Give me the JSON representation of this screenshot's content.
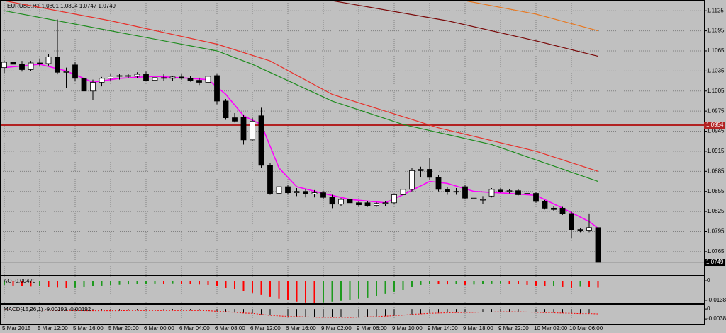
{
  "chart_data": [
    {
      "type": "candlestick",
      "title": "EURUSD,H1 1.0801 1.0804 1.0747 1.0749",
      "categories": [
        "5 Mar 2015",
        null,
        null,
        null,
        "5 Mar 12:00",
        null,
        null,
        null,
        "5 Mar 16:00",
        null,
        null,
        null,
        "5 Mar 20:00",
        null,
        null,
        null,
        "6 Mar 00:00",
        null,
        null,
        null,
        "6 Mar 04:00",
        null,
        null,
        null,
        "6 Mar 08:00",
        null,
        null,
        null,
        "6 Mar 12:00",
        null,
        null,
        null,
        "6 Mar 16:00",
        null,
        null,
        null,
        "9 Mar 02:00",
        null,
        null,
        null,
        "9 Mar 06:00",
        null,
        null,
        null,
        "9 Mar 10:00",
        null,
        null,
        null,
        "9 Mar 14:00",
        null,
        null,
        null,
        "9 Mar 18:00",
        null,
        null,
        null,
        "9 Mar 22:00",
        null,
        null,
        null,
        "10 Mar 02:00",
        null,
        null,
        null,
        "10 Mar 06:00",
        null,
        null,
        null
      ],
      "candles": [
        [
          1.104,
          1.105,
          1.1032,
          1.1048
        ],
        [
          1.1048,
          1.1055,
          1.104,
          1.1045
        ],
        [
          1.1045,
          1.105,
          1.1034,
          1.1037
        ],
        [
          1.1037,
          1.105,
          1.1035,
          1.1047
        ],
        [
          1.1047,
          1.1053,
          1.1042,
          1.1046
        ],
        [
          1.1046,
          1.106,
          1.1043,
          1.1056
        ],
        [
          1.1056,
          1.1112,
          1.103,
          1.1033
        ],
        [
          1.1033,
          1.104,
          1.101,
          1.1034
        ],
        [
          1.1044,
          1.1048,
          1.102,
          1.1024
        ],
        [
          1.1024,
          1.1028,
          1.1,
          1.1005
        ],
        [
          1.1005,
          1.1022,
          1.0992,
          1.1018
        ],
        [
          1.1018,
          1.1026,
          1.1012,
          1.1024
        ],
        [
          1.1024,
          1.103,
          1.102,
          1.1027
        ],
        [
          1.1027,
          1.1031,
          1.1022,
          1.1028
        ],
        [
          1.1028,
          1.1031,
          1.1024,
          1.1027
        ],
        [
          1.1027,
          1.1033,
          1.1024,
          1.103
        ],
        [
          1.103,
          1.1034,
          1.102,
          1.1021
        ],
        [
          1.1021,
          1.1028,
          1.1015,
          1.1025
        ],
        [
          1.1025,
          1.103,
          1.102,
          1.1024
        ],
        [
          1.1024,
          1.1028,
          1.102,
          1.1026
        ],
        [
          1.1026,
          1.103,
          1.1022,
          1.1024
        ],
        [
          1.1024,
          1.1027,
          1.1019,
          1.1021
        ],
        [
          1.1021,
          1.1025,
          1.1014,
          1.1018
        ],
        [
          1.1018,
          1.103,
          1.1016,
          1.1027
        ],
        [
          1.1028,
          1.103,
          1.0985,
          1.099
        ],
        [
          1.099,
          1.0993,
          1.0962,
          1.0965
        ],
        [
          1.0965,
          1.0972,
          1.0958,
          1.096
        ],
        [
          1.0966,
          1.097,
          1.0925,
          1.0932
        ],
        [
          1.0932,
          1.0965,
          1.093,
          1.096
        ],
        [
          1.0968,
          1.098,
          1.089,
          1.0894
        ],
        [
          1.0894,
          1.0898,
          1.085,
          1.0852
        ],
        [
          1.0852,
          1.0866,
          1.0848,
          1.0862
        ],
        [
          1.0862,
          1.0865,
          1.085,
          1.0853
        ],
        [
          1.0853,
          1.086,
          1.0848,
          1.0855
        ],
        [
          1.0855,
          1.0858,
          1.0846,
          1.0851
        ],
        [
          1.0851,
          1.0857,
          1.0846,
          1.0853
        ],
        [
          1.0853,
          1.0856,
          1.0843,
          1.0846
        ],
        [
          1.0846,
          1.085,
          1.083,
          1.0836
        ],
        [
          1.0836,
          1.0845,
          1.0833,
          1.0843
        ],
        [
          1.0843,
          1.0846,
          1.0834,
          1.0838
        ],
        [
          1.0838,
          1.0841,
          1.0832,
          1.0835
        ],
        [
          1.0838,
          1.084,
          1.0832,
          1.0834
        ],
        [
          1.0834,
          1.0839,
          1.0832,
          1.0837
        ],
        [
          1.0837,
          1.084,
          1.0833,
          1.0838
        ],
        [
          1.0838,
          1.0852,
          1.0836,
          1.085
        ],
        [
          1.085,
          1.0862,
          1.0847,
          1.0858
        ],
        [
          1.0858,
          1.089,
          1.0855,
          1.0886
        ],
        [
          1.0886,
          1.0892,
          1.0876,
          1.0888
        ],
        [
          1.0888,
          1.0905,
          1.0872,
          1.0876
        ],
        [
          1.0876,
          1.088,
          1.0855,
          1.0858
        ],
        [
          1.0858,
          1.0862,
          1.085,
          1.0855
        ],
        [
          1.0855,
          1.086,
          1.085,
          1.0855
        ],
        [
          1.0862,
          1.0865,
          1.0843,
          1.0845
        ],
        [
          1.0845,
          1.0848,
          1.0843,
          1.0845
        ],
        [
          1.0843,
          1.0848,
          1.0836,
          1.0843
        ],
        [
          1.0848,
          1.086,
          1.0846,
          1.0858
        ],
        [
          1.0857,
          1.086,
          1.0853,
          1.0855
        ],
        [
          1.0855,
          1.0858,
          1.0852,
          1.0856
        ],
        [
          1.0856,
          1.0858,
          1.0849,
          1.085
        ],
        [
          1.0852,
          1.0855,
          1.0848,
          1.0852
        ],
        [
          1.0852,
          1.0854,
          1.0838,
          1.084
        ],
        [
          1.084,
          1.0842,
          1.0828,
          1.083
        ],
        [
          1.083,
          1.0833,
          1.0826,
          1.0828
        ],
        [
          1.083,
          1.0832,
          1.082,
          1.0822
        ],
        [
          1.0822,
          1.0825,
          1.0785,
          1.0798
        ],
        [
          1.0798,
          1.08,
          1.0794,
          1.0796
        ],
        [
          1.0796,
          1.0822,
          1.0794,
          1.0801
        ],
        [
          1.0801,
          1.0804,
          1.0747,
          1.0749
        ]
      ],
      "up_color": "#ffffff",
      "down_color": "#000000",
      "series": [
        {
          "color": "#ff00ff",
          "x": [
            0,
            4,
            7,
            10,
            13,
            17,
            21,
            23,
            25,
            27,
            29,
            31,
            33,
            36,
            39,
            43,
            45,
            48,
            50,
            53,
            57,
            60,
            63,
            66,
            67
          ],
          "values": [
            1.104,
            1.1045,
            1.1035,
            1.1018,
            1.1024,
            1.1027,
            1.1024,
            1.1022,
            1.1,
            1.0968,
            1.0955,
            1.089,
            1.0862,
            1.0852,
            1.0843,
            1.0838,
            1.085,
            1.087,
            1.0867,
            1.0855,
            1.0852,
            1.0849,
            1.083,
            1.081,
            1.08
          ]
        },
        {
          "color": "#e8302a",
          "x": [
            0,
            12,
            24,
            30,
            37,
            49,
            60,
            67
          ],
          "values": [
            1.114,
            1.111,
            1.1075,
            1.105,
            1.1,
            1.095,
            1.0915,
            1.0885
          ]
        },
        {
          "color": "#1e8c1e",
          "x": [
            0,
            12,
            24,
            28,
            37,
            45,
            55,
            67
          ],
          "values": [
            1.1125,
            1.1095,
            1.1065,
            1.1045,
            1.099,
            1.0955,
            1.0925,
            1.087
          ]
        },
        {
          "color": "#7a0a0a",
          "x": [
            37,
            50,
            60,
            67
          ],
          "values": [
            1.114,
            1.111,
            1.108,
            1.1057
          ]
        },
        {
          "color": "#e87820",
          "x": [
            52,
            60,
            67
          ],
          "values": [
            1.114,
            1.112,
            1.1095
          ]
        }
      ],
      "hline": {
        "value": 1.0954,
        "color": "#b22222"
      },
      "last_price": 1.0749,
      "ylim": [
        1.073,
        1.114
      ],
      "yticks": [
        1.1125,
        1.1095,
        1.1065,
        1.1035,
        1.1005,
        1.0975,
        1.0945,
        1.0915,
        1.0885,
        1.0855,
        1.0825,
        1.0795,
        1.0765
      ],
      "grid": true
    },
    {
      "type": "bar",
      "title": "AO -0.00470",
      "values": [
        -0.0029,
        -0.0034,
        -0.0039,
        -0.0041,
        -0.0039,
        -0.0044,
        -0.0046,
        -0.0049,
        -0.0048,
        -0.0044,
        -0.0039,
        -0.0034,
        -0.003,
        -0.0028,
        -0.0025,
        -0.0023,
        -0.002,
        -0.0019,
        -0.002,
        -0.0018,
        -0.002,
        -0.0024,
        -0.0026,
        -0.0029,
        -0.0039,
        -0.0049,
        -0.0059,
        -0.0069,
        -0.0083,
        -0.0098,
        -0.0113,
        -0.0127,
        -0.0137,
        -0.0147,
        -0.0152,
        -0.0156,
        -0.0151,
        -0.0147,
        -0.0142,
        -0.0137,
        -0.0127,
        -0.0118,
        -0.0108,
        -0.0093,
        -0.0078,
        -0.0064,
        -0.0044,
        -0.0029,
        -0.002,
        -0.0021,
        -0.0025,
        -0.0024,
        -0.0029,
        -0.0026,
        -0.002,
        -0.0019,
        -0.0018,
        -0.002,
        -0.0024,
        -0.0029,
        -0.0034,
        -0.0039,
        -0.0038,
        -0.0044,
        -0.0049,
        -0.0042,
        -0.0044,
        -0.0047
      ],
      "up_color": "#1e9a1e",
      "down_color": "#ff0000",
      "ylim": [
        -0.0158,
        0.003
      ],
      "yticks": [
        0,
        -0.01381
      ]
    },
    {
      "type": "bar",
      "title": "MACD(15,26,1) -0.00192 -0.00192",
      "values": [
        -0.0003,
        -0.0003,
        -0.0004,
        -0.0004,
        -0.0004,
        -0.0005,
        -0.0005,
        -0.0006,
        -0.0006,
        -0.0007,
        -0.0007,
        -0.0007,
        -0.0007,
        -0.0007,
        -0.0006,
        -0.0006,
        -0.0006,
        -0.0006,
        -0.0006,
        -0.0006,
        -0.0006,
        -0.0006,
        -0.0006,
        -0.0007,
        -0.0009,
        -0.0011,
        -0.0013,
        -0.0016,
        -0.0017,
        -0.0021,
        -0.0025,
        -0.0027,
        -0.0029,
        -0.003,
        -0.0031,
        -0.0032,
        -0.0033,
        -0.0033,
        -0.0033,
        -0.0033,
        -0.0032,
        -0.0031,
        -0.003,
        -0.0028,
        -0.0026,
        -0.0024,
        -0.0021,
        -0.0019,
        -0.0017,
        -0.0016,
        -0.0015,
        -0.0014,
        -0.0014,
        -0.0013,
        -0.0012,
        -0.0012,
        -0.0011,
        -0.0011,
        -0.0011,
        -0.0012,
        -0.0013,
        -0.0014,
        -0.0015,
        -0.0016,
        -0.0017,
        -0.0018,
        -0.0018,
        -0.00192
      ],
      "color": "#000000",
      "signal_color": "#ff0000",
      "ylim": [
        -0.0058,
        0.0017
      ],
      "yticks": [
        0,
        -0.00389
      ]
    }
  ]
}
